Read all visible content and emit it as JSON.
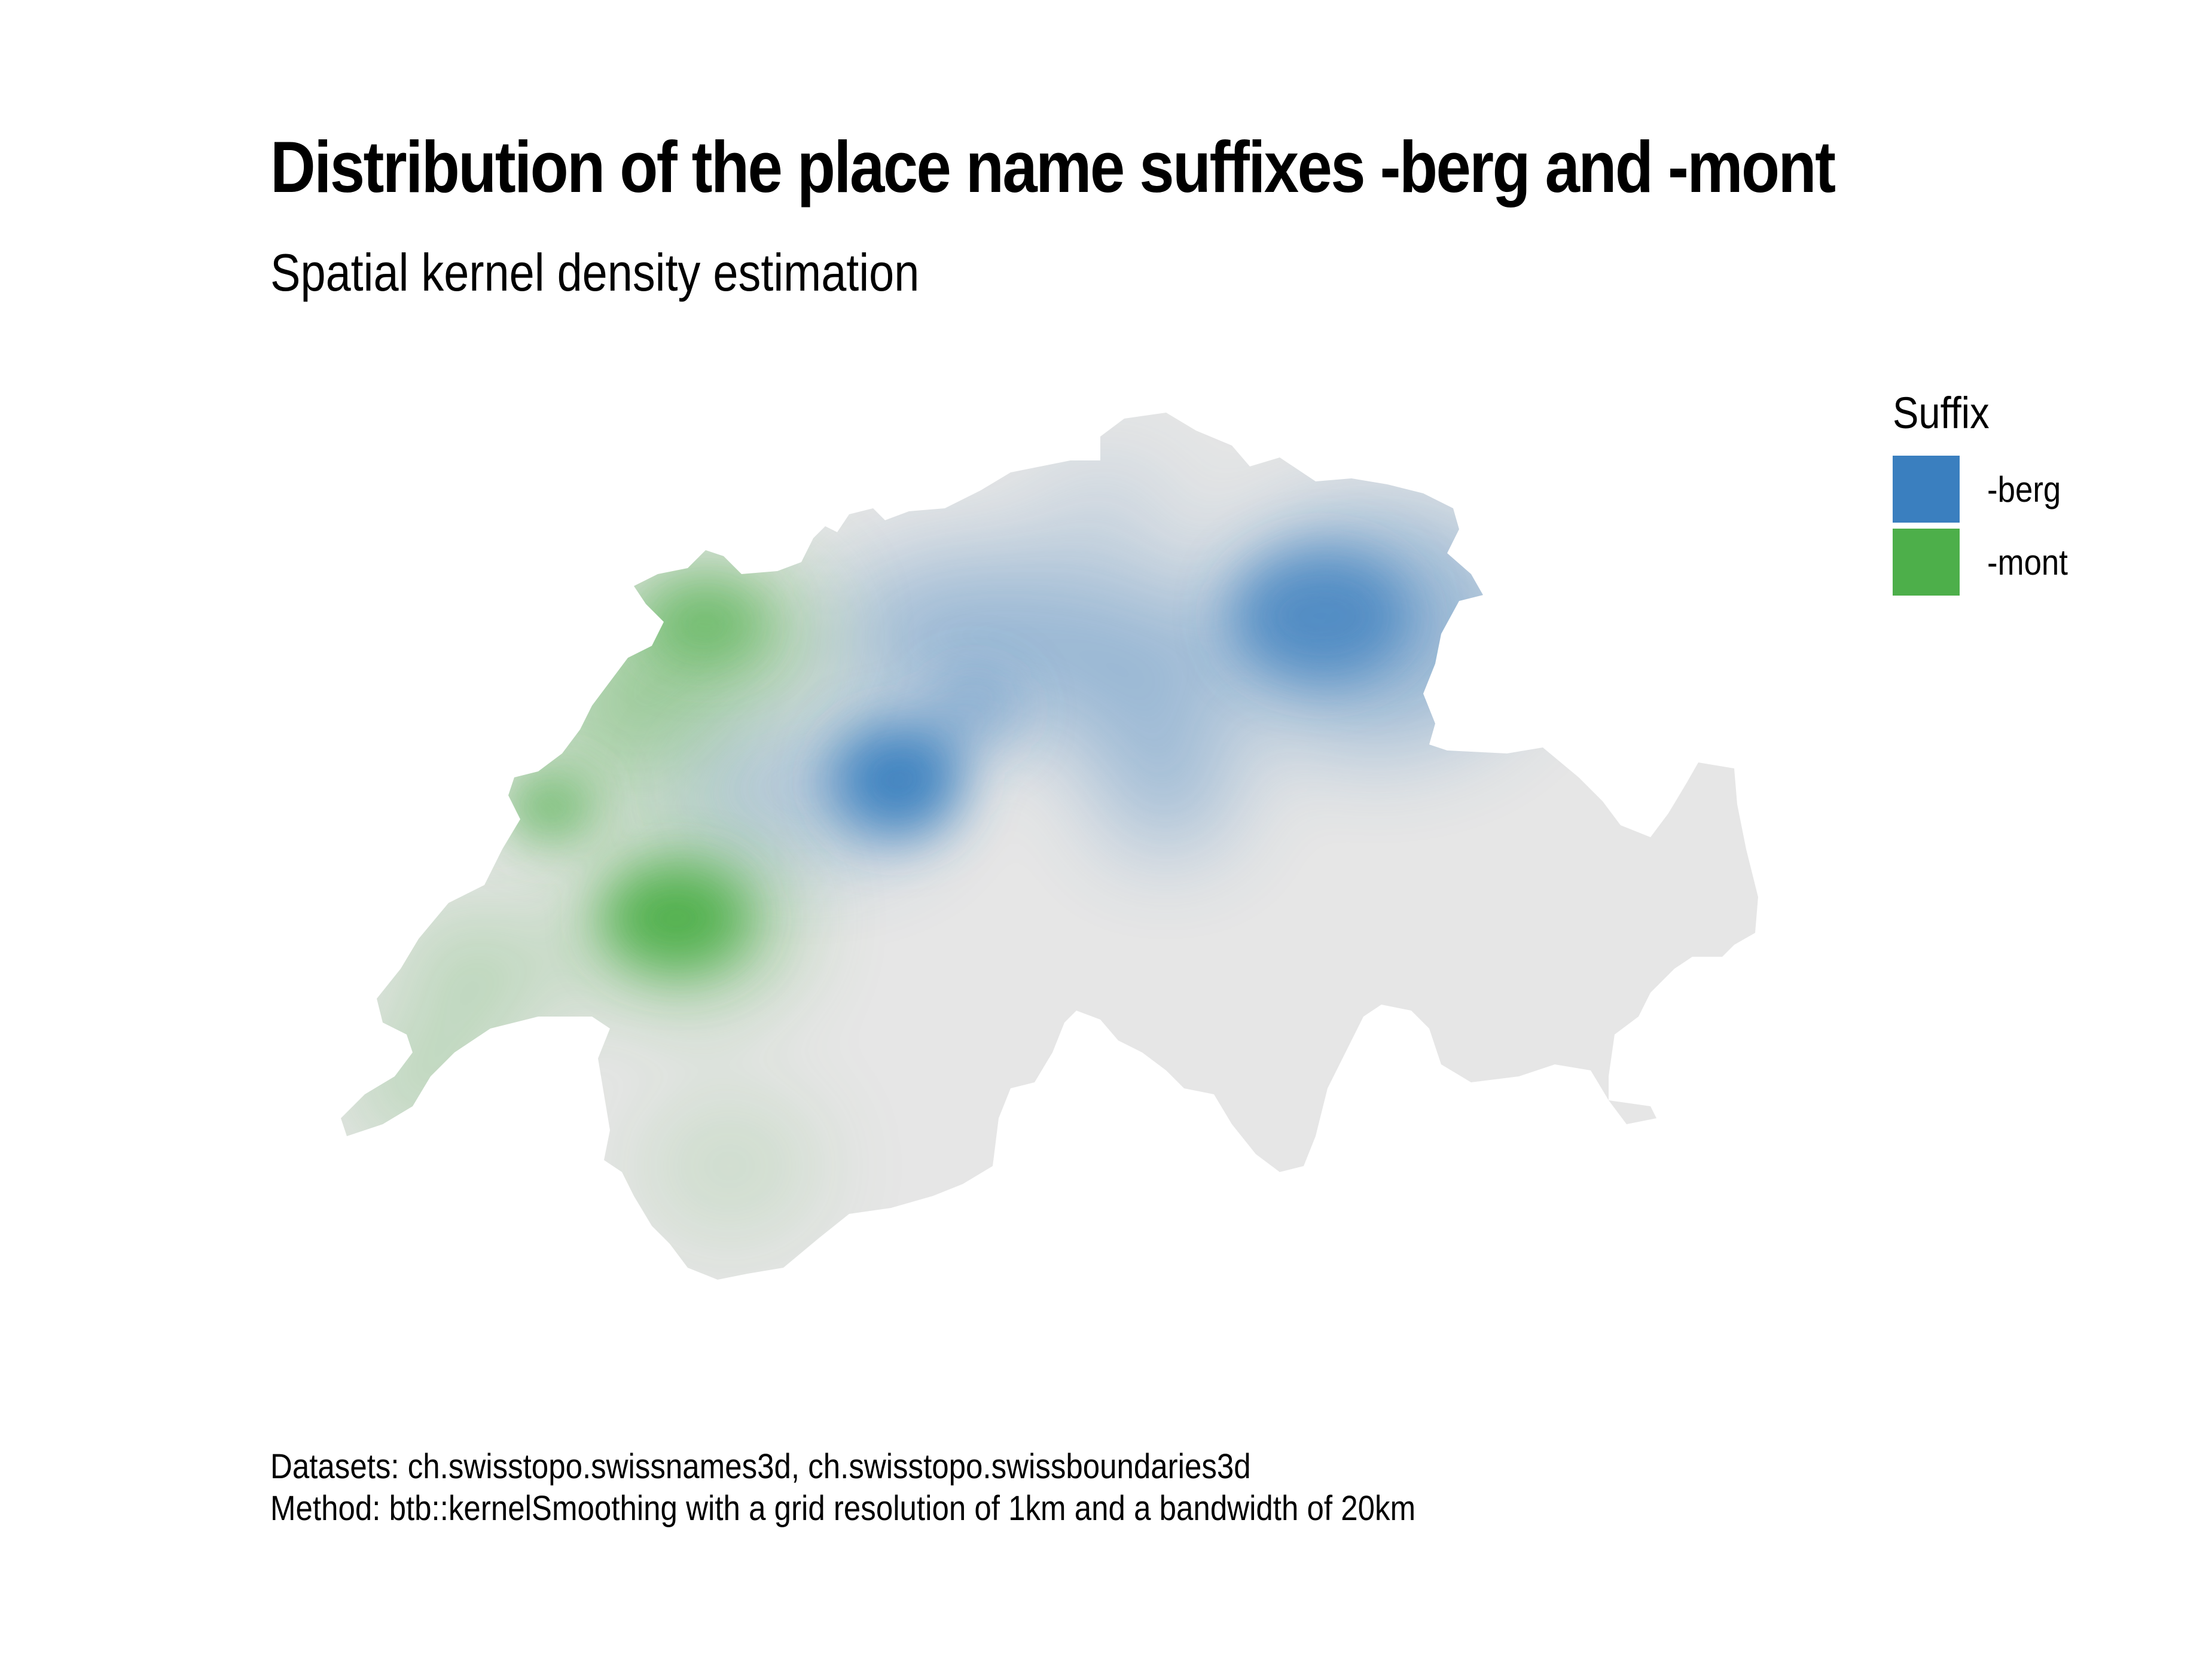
{
  "header": {
    "title": "Distribution of the place name suffixes -berg and -mont",
    "subtitle": "Spatial kernel density estimation"
  },
  "legend": {
    "title": "Suffix",
    "items": [
      {
        "label": "-berg",
        "color": "#3a7fbf"
      },
      {
        "label": "-mont",
        "color": "#4daf4a"
      }
    ]
  },
  "map": {
    "base_color": "#e6e6e6",
    "berg_color": "#3a7fbf",
    "mont_color": "#4daf4a"
  },
  "caption": {
    "line1": "Datasets: ch.swisstopo.swissnames3d, ch.swisstopo.swissboundaries3d",
    "line2": "Method: btb::kernelSmoothing with a grid resolution of 1km and a bandwidth of 20km"
  }
}
